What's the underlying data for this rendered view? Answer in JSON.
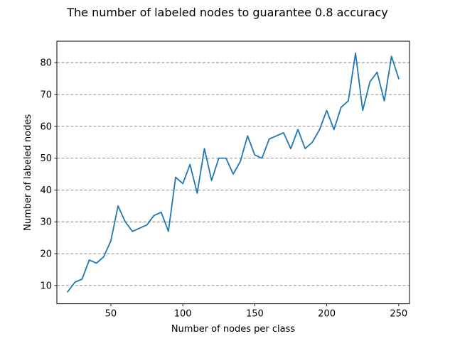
{
  "chart_data": {
    "type": "line",
    "title": "The number of labeled nodes to guarantee 0.8 accuracy",
    "xlabel": "Number of nodes per class",
    "ylabel": "Number of labeled nodes",
    "xlim": [
      12.5,
      257.5
    ],
    "ylim": [
      4.25,
      86.75
    ],
    "xticks": [
      50,
      100,
      150,
      200,
      250
    ],
    "yticks": [
      10,
      20,
      30,
      40,
      50,
      60,
      70,
      80
    ],
    "grid": {
      "axis": "y",
      "style": "dashed",
      "color": "#808080"
    },
    "series": [
      {
        "color": "#1f77b4",
        "x": [
          20,
          25,
          30,
          35,
          40,
          45,
          50,
          55,
          60,
          65,
          70,
          75,
          80,
          85,
          90,
          95,
          100,
          105,
          110,
          115,
          120,
          125,
          130,
          135,
          140,
          145,
          150,
          155,
          160,
          165,
          170,
          175,
          180,
          185,
          190,
          195,
          200,
          205,
          210,
          215,
          220,
          225,
          230,
          235,
          240,
          245,
          250
        ],
        "y": [
          8,
          11,
          12,
          18,
          17,
          19,
          24,
          35,
          30,
          27,
          28,
          29,
          32,
          33,
          27,
          44,
          42,
          48,
          39,
          53,
          43,
          50,
          50,
          45,
          49,
          57,
          51,
          50,
          56,
          57,
          58,
          53,
          59,
          53,
          55,
          59,
          65,
          59,
          66,
          68,
          83,
          65,
          74,
          77,
          68,
          82,
          75
        ]
      }
    ]
  }
}
